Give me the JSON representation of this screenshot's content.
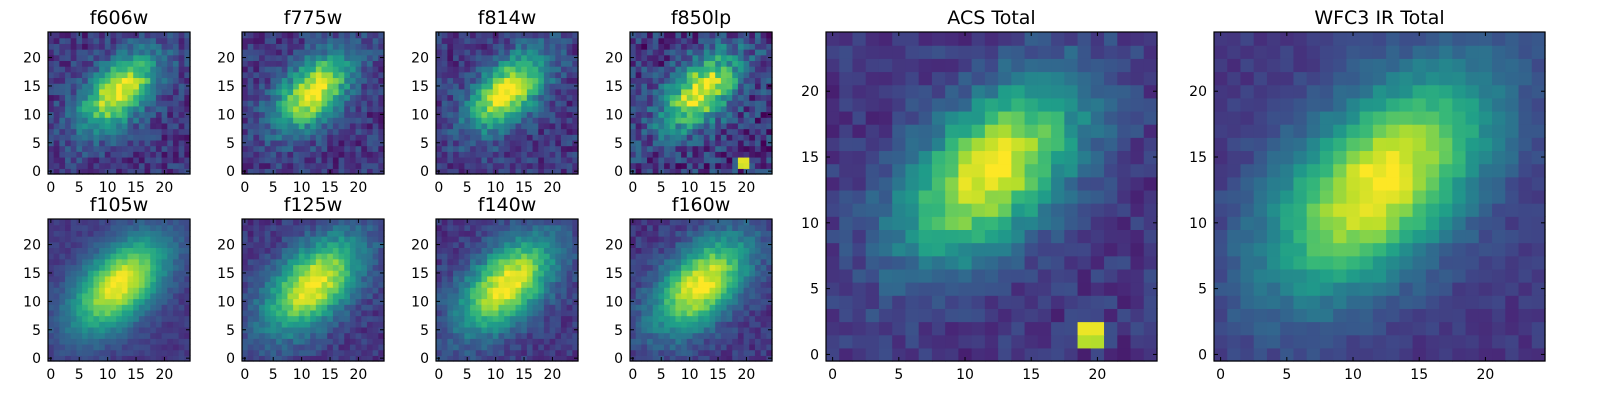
{
  "figure": {
    "panels": [
      {
        "title": "f606w",
        "kind": "small"
      },
      {
        "title": "f775w",
        "kind": "small"
      },
      {
        "title": "f814w",
        "kind": "small"
      },
      {
        "title": "f850lp",
        "kind": "small"
      },
      {
        "title": "f105w",
        "kind": "small"
      },
      {
        "title": "f125w",
        "kind": "small"
      },
      {
        "title": "f140w",
        "kind": "small"
      },
      {
        "title": "f160w",
        "kind": "small"
      },
      {
        "title": "ACS Total",
        "kind": "large"
      },
      {
        "title": "WFC3 IR Total",
        "kind": "large"
      }
    ]
  },
  "chart_data": [
    {
      "type": "heatmap",
      "title": "f606w",
      "grid_size": 25,
      "xlim": [
        0,
        25
      ],
      "ylim": [
        0,
        25
      ],
      "xticks": [
        0,
        5,
        10,
        15,
        20
      ],
      "yticks": [
        0,
        5,
        10,
        15,
        20
      ],
      "colormap": "viridis",
      "source": "acs",
      "brightest_pixel": [
        12,
        14
      ],
      "noise": "high"
    },
    {
      "type": "heatmap",
      "title": "f775w",
      "grid_size": 25,
      "xlim": [
        0,
        25
      ],
      "ylim": [
        0,
        25
      ],
      "xticks": [
        0,
        5,
        10,
        15,
        20
      ],
      "yticks": [
        0,
        5,
        10,
        15,
        20
      ],
      "colormap": "viridis",
      "source": "acs",
      "brightest_pixel": [
        12,
        14
      ],
      "noise": "high"
    },
    {
      "type": "heatmap",
      "title": "f814w",
      "grid_size": 25,
      "xlim": [
        0,
        25
      ],
      "ylim": [
        0,
        25
      ],
      "xticks": [
        0,
        5,
        10,
        15,
        20
      ],
      "yticks": [
        0,
        5,
        10,
        15,
        20
      ],
      "colormap": "viridis",
      "source": "acs",
      "brightest_pixel": [
        12,
        14
      ],
      "noise": "high"
    },
    {
      "type": "heatmap",
      "title": "f850lp",
      "grid_size": 25,
      "xlim": [
        0,
        25
      ],
      "ylim": [
        0,
        25
      ],
      "xticks": [
        0,
        5,
        10,
        15,
        20
      ],
      "yticks": [
        0,
        5,
        10,
        15,
        20
      ],
      "colormap": "viridis",
      "source": "acs",
      "brightest_pixel": [
        12,
        14
      ],
      "noise": "very high",
      "hot_pixels": [
        [
          19,
          1
        ],
        [
          20,
          1
        ],
        [
          19,
          2
        ],
        [
          20,
          2
        ]
      ]
    },
    {
      "type": "heatmap",
      "title": "f105w",
      "grid_size": 25,
      "xlim": [
        0,
        25
      ],
      "ylim": [
        0,
        25
      ],
      "xticks": [
        0,
        5,
        10,
        15,
        20
      ],
      "yticks": [
        0,
        5,
        10,
        15,
        20
      ],
      "colormap": "viridis",
      "source": "ir",
      "brightest_pixel": [
        12,
        13
      ],
      "noise": "low"
    },
    {
      "type": "heatmap",
      "title": "f125w",
      "grid_size": 25,
      "xlim": [
        0,
        25
      ],
      "ylim": [
        0,
        25
      ],
      "xticks": [
        0,
        5,
        10,
        15,
        20
      ],
      "yticks": [
        0,
        5,
        10,
        15,
        20
      ],
      "colormap": "viridis",
      "source": "ir",
      "brightest_pixel": [
        12,
        13
      ],
      "noise": "medium"
    },
    {
      "type": "heatmap",
      "title": "f140w",
      "grid_size": 25,
      "xlim": [
        0,
        25
      ],
      "ylim": [
        0,
        25
      ],
      "xticks": [
        0,
        5,
        10,
        15,
        20
      ],
      "yticks": [
        0,
        5,
        10,
        15,
        20
      ],
      "colormap": "viridis",
      "source": "ir",
      "brightest_pixel": [
        12,
        13
      ],
      "noise": "medium"
    },
    {
      "type": "heatmap",
      "title": "f160w",
      "grid_size": 25,
      "xlim": [
        0,
        25
      ],
      "ylim": [
        0,
        25
      ],
      "xticks": [
        0,
        5,
        10,
        15,
        20
      ],
      "yticks": [
        0,
        5,
        10,
        15,
        20
      ],
      "colormap": "viridis",
      "source": "ir",
      "brightest_pixel": [
        12,
        13
      ],
      "noise": "medium"
    },
    {
      "type": "heatmap",
      "title": "ACS Total",
      "grid_size": 25,
      "xlim": [
        0,
        25
      ],
      "ylim": [
        0,
        25
      ],
      "xticks": [
        0,
        5,
        10,
        15,
        20
      ],
      "yticks": [
        0,
        5,
        10,
        15,
        20
      ],
      "colormap": "viridis",
      "source": "acs",
      "brightest_pixel": [
        12,
        14
      ],
      "noise": "medium",
      "hot_pixels": [
        [
          19,
          1
        ],
        [
          20,
          1
        ],
        [
          19,
          2
        ],
        [
          20,
          2
        ]
      ]
    },
    {
      "type": "heatmap",
      "title": "WFC3 IR Total",
      "grid_size": 25,
      "xlim": [
        0,
        25
      ],
      "ylim": [
        0,
        25
      ],
      "xticks": [
        0,
        5,
        10,
        15,
        20
      ],
      "yticks": [
        0,
        5,
        10,
        15,
        20
      ],
      "colormap": "viridis",
      "source": "ir",
      "brightest_pixel": [
        12,
        13
      ],
      "noise": "low"
    }
  ]
}
